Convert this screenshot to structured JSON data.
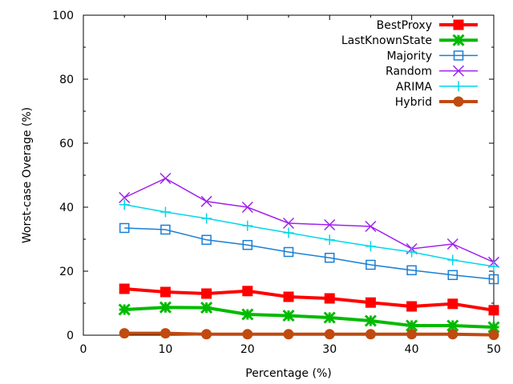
{
  "chart_data": {
    "type": "line",
    "title": "",
    "xlabel": "Percentage (%)",
    "ylabel": "Worst-case Overage (%)",
    "xlim": [
      0,
      50
    ],
    "ylim": [
      0,
      100
    ],
    "x_ticks": [
      "0",
      "10",
      "20",
      "30",
      "40",
      "50"
    ],
    "y_ticks": [
      "0",
      "20",
      "40",
      "60",
      "80",
      "100"
    ],
    "grid": false,
    "legend_position": "top-right",
    "x": [
      5,
      10,
      15,
      20,
      25,
      30,
      35,
      40,
      45,
      50
    ],
    "series": [
      {
        "name": "BestProxy",
        "color": "#ff0000",
        "marker": "filled-square",
        "values": [
          14.5,
          13.5,
          13.0,
          13.8,
          12.0,
          11.5,
          10.2,
          9.0,
          9.8,
          7.8
        ]
      },
      {
        "name": "LastKnownState",
        "color": "#00bb00",
        "marker": "asterisk",
        "values": [
          8.0,
          8.7,
          8.6,
          6.5,
          6.1,
          5.5,
          4.5,
          3.0,
          3.0,
          2.5
        ]
      },
      {
        "name": "Majority",
        "color": "#1a7fd4",
        "marker": "open-square",
        "values": [
          33.5,
          33.0,
          29.8,
          28.2,
          26.0,
          24.2,
          22.0,
          20.3,
          18.8,
          17.5
        ]
      },
      {
        "name": "Random",
        "color": "#a020f0",
        "marker": "cross",
        "values": [
          43.0,
          49.0,
          41.8,
          40.0,
          35.0,
          34.5,
          34.0,
          27.0,
          28.5,
          22.8
        ]
      },
      {
        "name": "ARIMA",
        "color": "#00d8e8",
        "marker": "plus",
        "values": [
          40.8,
          38.5,
          36.5,
          34.2,
          32.0,
          29.8,
          27.8,
          26.0,
          23.5,
          21.5
        ]
      },
      {
        "name": "Hybrid",
        "color": "#c04a10",
        "marker": "filled-circle",
        "values": [
          0.6,
          0.6,
          0.3,
          0.3,
          0.3,
          0.3,
          0.3,
          0.3,
          0.3,
          0.1
        ]
      }
    ]
  }
}
